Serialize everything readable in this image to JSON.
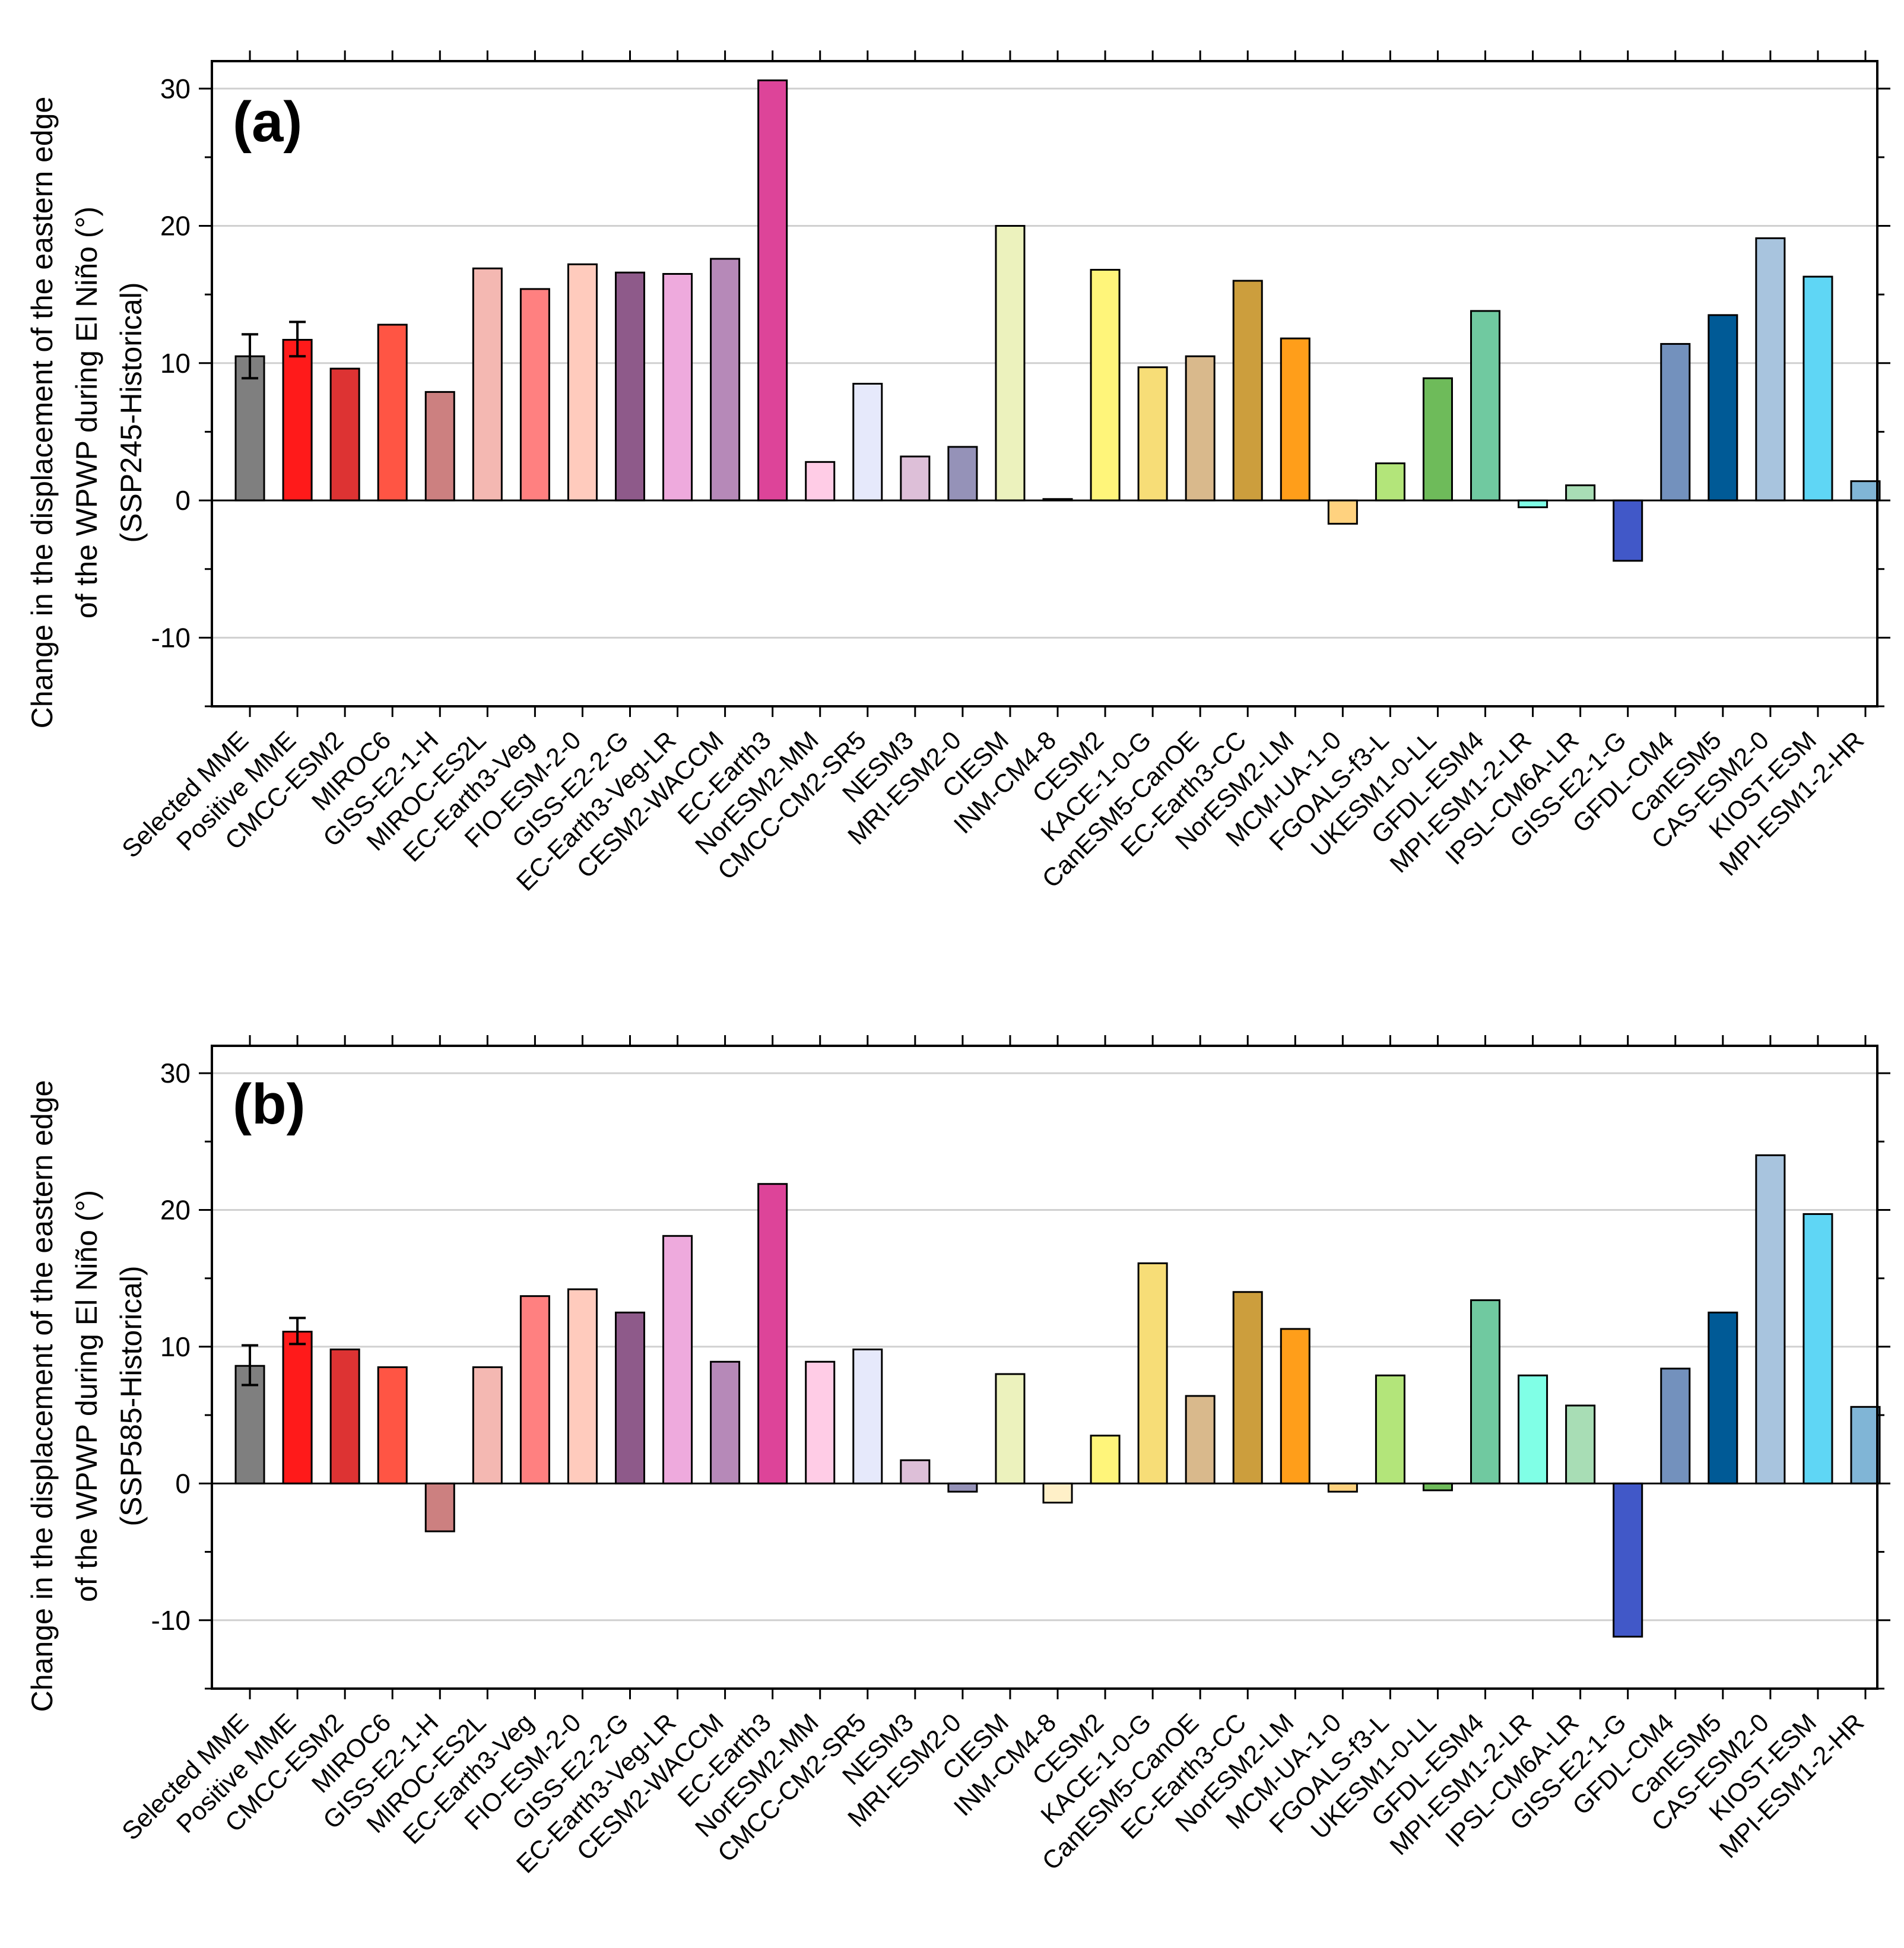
{
  "chart_data": [
    {
      "type": "bar",
      "panel_label": "(a)",
      "ylabel_lines": [
        "Change in the displacement of the eastern edge",
        "of the WPWP during El Niño (°)",
        "(SSP245-Historical)"
      ],
      "ylim": [
        -15,
        32
      ],
      "yticks": [
        -10,
        0,
        10,
        20,
        30
      ],
      "grid": true,
      "categories": [
        "Selected MME",
        "Positive MME",
        "CMCC-ESM2",
        "MIROC6",
        "GISS-E2-1-H",
        "MIROC-ES2L",
        "EC-Earth3-Veg",
        "FIO-ESM-2-0",
        "GISS-E2-2-G",
        "EC-Earth3-Veg-LR",
        "CESM2-WACCM",
        "EC-Earth3",
        "NorESM2-MM",
        "CMCC-CM2-SR5",
        "NESM3",
        "MRI-ESM2-0",
        "CIESM",
        "INM-CM4-8",
        "CESM2",
        "KACE-1-0-G",
        "CanESM5-CanOE",
        "EC-Earth3-CC",
        "NorESM2-LM",
        "MCM-UA-1-0",
        "FGOALS-f3-L",
        "UKESM1-0-LL",
        "GFDL-ESM4",
        "MPI-ESM1-2-LR",
        "IPSL-CM6A-LR",
        "GISS-E2-1-G",
        "GFDL-CM4",
        "CanESM5",
        "CAS-ESM2-0",
        "KIOST-ESM",
        "MPI-ESM1-2-HR"
      ],
      "values": [
        10.5,
        11.7,
        9.6,
        12.8,
        7.9,
        16.9,
        15.4,
        17.2,
        16.6,
        16.5,
        17.6,
        30.6,
        2.8,
        8.5,
        3.2,
        3.9,
        20.0,
        0.1,
        16.8,
        9.7,
        10.5,
        16.0,
        11.8,
        -1.7,
        2.7,
        8.9,
        13.8,
        -0.5,
        1.1,
        -4.4,
        11.4,
        13.5,
        19.1,
        16.3,
        1.4
      ],
      "error_bars": [
        {
          "index": 0,
          "low": 8.9,
          "high": 12.1
        },
        {
          "index": 1,
          "low": 10.5,
          "high": 13.0
        }
      ]
    },
    {
      "type": "bar",
      "panel_label": "(b)",
      "ylabel_lines": [
        "Change in the displacement of the eastern edge",
        "of the WPWP during El Niño (°)",
        "(SSP585-Historical)"
      ],
      "ylim": [
        -15,
        32
      ],
      "yticks": [
        -10,
        0,
        10,
        20,
        30
      ],
      "grid": true,
      "categories": [
        "Selected MME",
        "Positive MME",
        "CMCC-ESM2",
        "MIROC6",
        "GISS-E2-1-H",
        "MIROC-ES2L",
        "EC-Earth3-Veg",
        "FIO-ESM-2-0",
        "GISS-E2-2-G",
        "EC-Earth3-Veg-LR",
        "CESM2-WACCM",
        "EC-Earth3",
        "NorESM2-MM",
        "CMCC-CM2-SR5",
        "NESM3",
        "MRI-ESM2-0",
        "CIESM",
        "INM-CM4-8",
        "CESM2",
        "KACE-1-0-G",
        "CanESM5-CanOE",
        "EC-Earth3-CC",
        "NorESM2-LM",
        "MCM-UA-1-0",
        "FGOALS-f3-L",
        "UKESM1-0-LL",
        "GFDL-ESM4",
        "MPI-ESM1-2-LR",
        "IPSL-CM6A-LR",
        "GISS-E2-1-G",
        "GFDL-CM4",
        "CanESM5",
        "CAS-ESM2-0",
        "KIOST-ESM",
        "MPI-ESM1-2-HR"
      ],
      "values": [
        8.6,
        11.1,
        9.8,
        8.5,
        -3.5,
        8.5,
        13.7,
        14.2,
        12.5,
        18.1,
        8.9,
        21.9,
        8.9,
        9.8,
        1.7,
        -0.6,
        8.0,
        -1.4,
        3.5,
        16.1,
        6.4,
        14.0,
        11.3,
        -0.6,
        7.9,
        -0.5,
        13.4,
        7.9,
        5.7,
        -11.2,
        8.4,
        12.5,
        24.0,
        19.7,
        5.6
      ],
      "error_bars": [
        {
          "index": 0,
          "low": 7.2,
          "high": 10.1
        },
        {
          "index": 1,
          "low": 10.2,
          "high": 12.1
        }
      ]
    }
  ],
  "colors": [
    "#7f7f7f",
    "#ff1a1a",
    "#dd3333",
    "#ff5544",
    "#cc8080",
    "#f4b8b2",
    "#ff8080",
    "#ffcbbd",
    "#8e5a8a",
    "#eeaadd",
    "#b689b8",
    "#dd4499",
    "#ffcce6",
    "#e6e9fb",
    "#ddbfd8",
    "#9592b8",
    "#ecf2bd",
    "#fff0c8",
    "#fff57a",
    "#f7dd77",
    "#d9b98c",
    "#cc9e3d",
    "#ff9e1a",
    "#ffd27f",
    "#b3e57a",
    "#6ebb5a",
    "#70c9a0",
    "#80ffe6",
    "#a8ddb5",
    "#4158c8",
    "#7391bd",
    "#005a96",
    "#a8c4de",
    "#5fd6f5",
    "#80b5d6"
  ]
}
